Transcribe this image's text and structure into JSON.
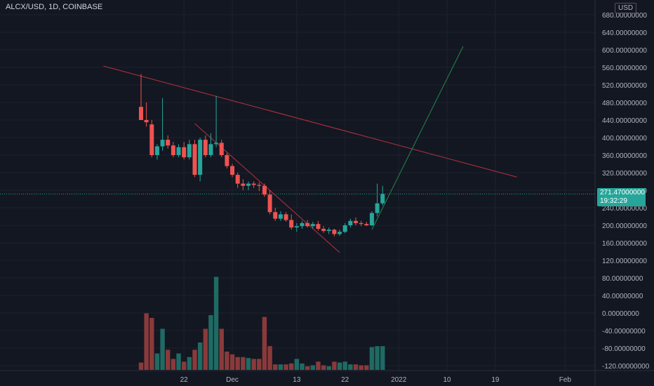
{
  "header": {
    "symbol_line": "ALCX/USD, 1D, COINBASE"
  },
  "price_scale": {
    "currency": "USD",
    "current_price": "271.47000000",
    "countdown": "19:32:29"
  },
  "colors": {
    "background": "#131722",
    "grid": "#1e222d",
    "up": "#26a69a",
    "down": "#ef5350",
    "up_volume": "#1f6b64",
    "down_volume": "#8a3a3a",
    "trendline_red": "#b7323f",
    "trendline_green": "#1f8a4c",
    "text": "#b2b5be"
  },
  "chart_data": {
    "type": "candlestick",
    "x_ticks": [
      "22",
      "Dec",
      "13",
      "22",
      "2022",
      "10",
      "19",
      "Feb"
    ],
    "y_ticks": [
      "680.00000000",
      "640.00000000",
      "600.00000000",
      "560.00000000",
      "520.00000000",
      "480.00000000",
      "440.00000000",
      "400.00000000",
      "360.00000000",
      "320.00000000",
      "280.00000000",
      "240.00000000",
      "200.00000000",
      "160.00000000",
      "120.00000000",
      "80.00000000",
      "40.00000000",
      "0.00000000",
      "-40.00000000",
      "-80.00000000",
      "-120.00000000"
    ],
    "y_range": [
      -130,
      700
    ],
    "candles": [
      {
        "d": "2021-11-14",
        "o": 470,
        "h": 545,
        "l": 440,
        "c": 440
      },
      {
        "d": "2021-11-15",
        "o": 440,
        "h": 480,
        "l": 425,
        "c": 435
      },
      {
        "d": "2021-11-16",
        "o": 430,
        "h": 440,
        "l": 355,
        "c": 360
      },
      {
        "d": "2021-11-17",
        "o": 360,
        "h": 385,
        "l": 350,
        "c": 380
      },
      {
        "d": "2021-11-18",
        "o": 380,
        "h": 490,
        "l": 370,
        "c": 395
      },
      {
        "d": "2021-11-19",
        "o": 395,
        "h": 405,
        "l": 375,
        "c": 382
      },
      {
        "d": "2021-11-20",
        "o": 382,
        "h": 390,
        "l": 355,
        "c": 360
      },
      {
        "d": "2021-11-21",
        "o": 360,
        "h": 385,
        "l": 355,
        "c": 378
      },
      {
        "d": "2021-11-22",
        "o": 378,
        "h": 390,
        "l": 350,
        "c": 355
      },
      {
        "d": "2021-11-23",
        "o": 355,
        "h": 395,
        "l": 350,
        "c": 385
      },
      {
        "d": "2021-11-24",
        "o": 385,
        "h": 395,
        "l": 310,
        "c": 315
      },
      {
        "d": "2021-11-25",
        "o": 315,
        "h": 400,
        "l": 300,
        "c": 395
      },
      {
        "d": "2021-11-26",
        "o": 395,
        "h": 405,
        "l": 355,
        "c": 360
      },
      {
        "d": "2021-11-27",
        "o": 360,
        "h": 410,
        "l": 355,
        "c": 385
      },
      {
        "d": "2021-11-28",
        "o": 385,
        "h": 495,
        "l": 378,
        "c": 388
      },
      {
        "d": "2021-11-29",
        "o": 388,
        "h": 395,
        "l": 355,
        "c": 360
      },
      {
        "d": "2021-11-30",
        "o": 360,
        "h": 365,
        "l": 330,
        "c": 335
      },
      {
        "d": "2021-12-01",
        "o": 335,
        "h": 340,
        "l": 310,
        "c": 315
      },
      {
        "d": "2021-12-02",
        "o": 315,
        "h": 320,
        "l": 285,
        "c": 295
      },
      {
        "d": "2021-12-03",
        "o": 295,
        "h": 305,
        "l": 280,
        "c": 290
      },
      {
        "d": "2021-12-04",
        "o": 290,
        "h": 300,
        "l": 280,
        "c": 295
      },
      {
        "d": "2021-12-05",
        "o": 295,
        "h": 300,
        "l": 285,
        "c": 292
      },
      {
        "d": "2021-12-06",
        "o": 292,
        "h": 298,
        "l": 278,
        "c": 290
      },
      {
        "d": "2021-12-07",
        "o": 290,
        "h": 295,
        "l": 265,
        "c": 270
      },
      {
        "d": "2021-12-08",
        "o": 270,
        "h": 280,
        "l": 225,
        "c": 230
      },
      {
        "d": "2021-12-09",
        "o": 230,
        "h": 240,
        "l": 210,
        "c": 215
      },
      {
        "d": "2021-12-10",
        "o": 215,
        "h": 232,
        "l": 210,
        "c": 225
      },
      {
        "d": "2021-12-11",
        "o": 225,
        "h": 230,
        "l": 208,
        "c": 212
      },
      {
        "d": "2021-12-12",
        "o": 212,
        "h": 225,
        "l": 190,
        "c": 195
      },
      {
        "d": "2021-12-13",
        "o": 195,
        "h": 205,
        "l": 185,
        "c": 198
      },
      {
        "d": "2021-12-14",
        "o": 198,
        "h": 210,
        "l": 192,
        "c": 205
      },
      {
        "d": "2021-12-15",
        "o": 205,
        "h": 212,
        "l": 195,
        "c": 198
      },
      {
        "d": "2021-12-16",
        "o": 198,
        "h": 208,
        "l": 192,
        "c": 203
      },
      {
        "d": "2021-12-17",
        "o": 203,
        "h": 210,
        "l": 188,
        "c": 192
      },
      {
        "d": "2021-12-18",
        "o": 192,
        "h": 198,
        "l": 183,
        "c": 187
      },
      {
        "d": "2021-12-19",
        "o": 187,
        "h": 195,
        "l": 180,
        "c": 190
      },
      {
        "d": "2021-12-20",
        "o": 190,
        "h": 192,
        "l": 175,
        "c": 180
      },
      {
        "d": "2021-12-21",
        "o": 180,
        "h": 190,
        "l": 176,
        "c": 185
      },
      {
        "d": "2021-12-22",
        "o": 185,
        "h": 205,
        "l": 182,
        "c": 200
      },
      {
        "d": "2021-12-23",
        "o": 200,
        "h": 215,
        "l": 195,
        "c": 210
      },
      {
        "d": "2021-12-24",
        "o": 210,
        "h": 218,
        "l": 200,
        "c": 205
      },
      {
        "d": "2021-12-25",
        "o": 205,
        "h": 210,
        "l": 198,
        "c": 203
      },
      {
        "d": "2021-12-26",
        "o": 203,
        "h": 208,
        "l": 198,
        "c": 200
      },
      {
        "d": "2021-12-27",
        "o": 200,
        "h": 232,
        "l": 198,
        "c": 228
      },
      {
        "d": "2021-12-28",
        "o": 228,
        "h": 295,
        "l": 220,
        "c": 250
      },
      {
        "d": "2021-12-29",
        "o": 250,
        "h": 290,
        "l": 245,
        "c": 271.47
      }
    ],
    "volumes": [
      8,
      62,
      57,
      18,
      45,
      22,
      12,
      18,
      9,
      14,
      22,
      30,
      45,
      60,
      102,
      45,
      20,
      17,
      14,
      14,
      13,
      12,
      12,
      58,
      26,
      6,
      6,
      6,
      7,
      12,
      7,
      4,
      5,
      9,
      5,
      4,
      9,
      8,
      9,
      6,
      6,
      5,
      5,
      25,
      26,
      26
    ],
    "trendlines": [
      {
        "color": "red",
        "x0": "2021-11-07",
        "y0": 563,
        "x1": "2022-01-23",
        "y1": 310
      },
      {
        "color": "red",
        "x0": "2021-11-24",
        "y0": 432,
        "x1": "2021-12-21",
        "y1": 138
      },
      {
        "color": "green",
        "x0": "2021-12-27",
        "y0": 190,
        "x1": "2022-01-13",
        "y1": 608
      }
    ],
    "current_price_value": 271.47
  }
}
